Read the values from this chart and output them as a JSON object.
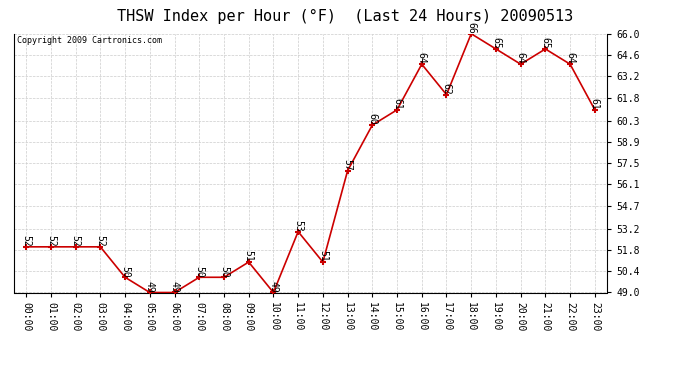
{
  "title": "THSW Index per Hour (°F)  (Last 24 Hours) 20090513",
  "copyright": "Copyright 2009 Cartronics.com",
  "hours": [
    0,
    1,
    2,
    3,
    4,
    5,
    6,
    7,
    8,
    9,
    10,
    11,
    12,
    13,
    14,
    15,
    16,
    17,
    18,
    19,
    20,
    21,
    22,
    23
  ],
  "values": [
    52,
    52,
    52,
    52,
    50,
    49,
    49,
    50,
    50,
    51,
    49,
    53,
    51,
    57,
    60,
    61,
    64,
    62,
    66,
    65,
    64,
    65,
    64,
    61
  ],
  "yticks": [
    49.0,
    50.4,
    51.8,
    53.2,
    54.7,
    56.1,
    57.5,
    58.9,
    60.3,
    61.8,
    63.2,
    64.6,
    66.0
  ],
  "line_color": "#cc0000",
  "marker_color": "#cc0000",
  "grid_color": "#cccccc",
  "bg_color": "#ffffff",
  "title_fontsize": 11,
  "copyright_fontsize": 6,
  "label_fontsize": 7,
  "tick_fontsize": 7,
  "ymin": 49.0,
  "ymax": 66.0
}
